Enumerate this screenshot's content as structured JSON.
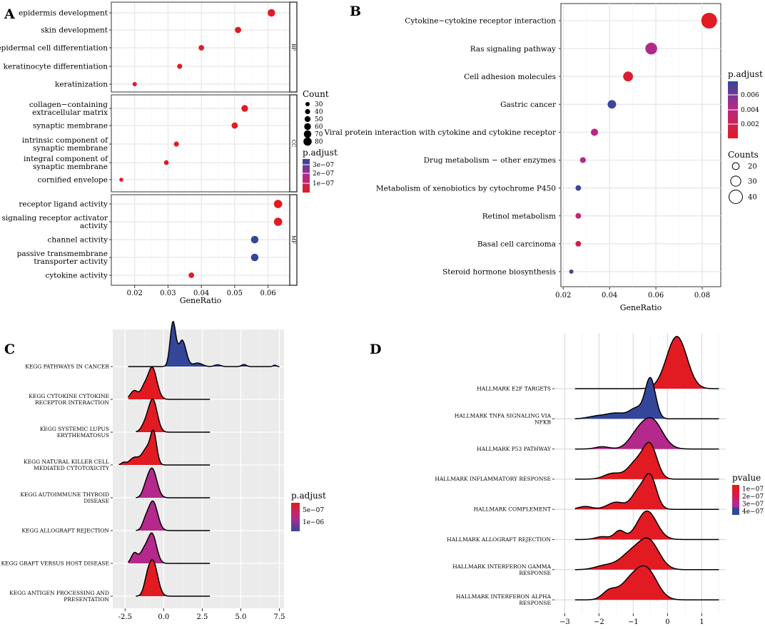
{
  "panel_letters": [
    "A",
    "B",
    "C",
    "D"
  ],
  "colors": {
    "red": "#e21b23",
    "purple": "#b4298b",
    "blue": "#33469a",
    "grid": "#e6e6e6"
  },
  "chart_data": [
    {
      "panel": "A",
      "type": "scatter",
      "xlabel": "GeneRatio",
      "xlim": [
        0.013,
        0.0665
      ],
      "xticks": [
        0.02,
        0.03,
        0.04,
        0.05,
        0.06
      ],
      "xtick_labels": [
        "0.02",
        "0.03",
        "0.04",
        "0.05",
        "0.06"
      ],
      "facets": [
        {
          "label": "BP",
          "terms": [
            {
              "label": [
                "epidermis development"
              ],
              "x": 0.061,
              "count": 70,
              "padj": 0.5
            },
            {
              "label": [
                "skin development"
              ],
              "x": 0.051,
              "count": 55,
              "padj": 0.5
            },
            {
              "label": [
                "epidermal cell differentiation"
              ],
              "x": 0.04,
              "count": 45,
              "padj": 0.5
            },
            {
              "label": [
                "keratinocyte differentiation"
              ],
              "x": 0.0335,
              "count": 40,
              "padj": 0.5
            },
            {
              "label": [
                "keratinization"
              ],
              "x": 0.02,
              "count": 30,
              "padj": 0.5
            }
          ]
        },
        {
          "label": "CC",
          "terms": [
            {
              "label": [
                "collagen−containing",
                "extracellular matrix"
              ],
              "x": 0.053,
              "count": 60,
              "padj": 0.5
            },
            {
              "label": [
                "synaptic membrane"
              ],
              "x": 0.05,
              "count": 55,
              "padj": 0.5
            },
            {
              "label": [
                "intrinsic component of",
                "synaptic membrane"
              ],
              "x": 0.0325,
              "count": 40,
              "padj": 0.5
            },
            {
              "label": [
                "integral component of",
                "synaptic membrane"
              ],
              "x": 0.0295,
              "count": 35,
              "padj": 0.5
            },
            {
              "label": [
                "cornified envelope"
              ],
              "x": 0.016,
              "count": 25,
              "padj": 0.5
            }
          ]
        },
        {
          "label": "MF",
          "terms": [
            {
              "label": [
                "receptor ligand activity"
              ],
              "x": 0.063,
              "count": 80,
              "padj": 0.5
            },
            {
              "label": [
                "signaling receptor activator",
                "activity"
              ],
              "x": 0.063,
              "count": 80,
              "padj": 0.5
            },
            {
              "label": [
                "channel activity"
              ],
              "x": 0.056,
              "count": 70,
              "padj": 3.2
            },
            {
              "label": [
                "passive transmembrane",
                "transporter activity"
              ],
              "x": 0.056,
              "count": 70,
              "padj": 3.2
            },
            {
              "label": [
                "cytokine activity"
              ],
              "x": 0.037,
              "count": 45,
              "padj": 0.5
            }
          ]
        }
      ],
      "size_legend": {
        "title": "Count",
        "values": [
          30,
          40,
          50,
          60,
          70,
          80
        ]
      },
      "color_legend": {
        "title": "p.adjust",
        "labels": [
          "3e−07",
          "2e−07",
          "1e−07"
        ]
      }
    },
    {
      "panel": "B",
      "type": "scatter",
      "xlabel": "GeneRatio",
      "xlim": [
        0.019,
        0.088
      ],
      "xticks": [
        0.02,
        0.04,
        0.06,
        0.08
      ],
      "xtick_labels": [
        "0.02",
        "0.04",
        "0.06",
        "0.08"
      ],
      "terms": [
        {
          "label": "Cytokine−cytokine receptor interaction",
          "x": 0.083,
          "counts": 47,
          "padj": 0.0001
        },
        {
          "label": "Ras signaling pathway",
          "x": 0.058,
          "counts": 35,
          "padj": 0.004
        },
        {
          "label": "Cell adhesion molecules",
          "x": 0.048,
          "counts": 29,
          "padj": 0.0006
        },
        {
          "label": "Gastric cancer",
          "x": 0.041,
          "counts": 25,
          "padj": 0.0075
        },
        {
          "label": "Viral protein interaction with cytokine and cytokine receptor",
          "x": 0.0335,
          "counts": 21,
          "padj": 0.0035
        },
        {
          "label": "Drug metabolism − other enzymes",
          "x": 0.0285,
          "counts": 17,
          "padj": 0.004
        },
        {
          "label": "Metabolism of xenobiotics by cytochrome P450",
          "x": 0.0265,
          "counts": 16,
          "padj": 0.0075
        },
        {
          "label": "Retinol metabolism",
          "x": 0.0265,
          "counts": 16,
          "padj": 0.003
        },
        {
          "label": "Basal cell carcinoma",
          "x": 0.0265,
          "counts": 16,
          "padj": 0.0012
        },
        {
          "label": "Steroid hormone biosynthesis",
          "x": 0.0235,
          "counts": 12,
          "padj": 0.0075
        }
      ],
      "color_legend": {
        "title": "p.adjust",
        "labels": [
          "0.006",
          "0.004",
          "0.002"
        ]
      },
      "size_legend": {
        "title": "Counts",
        "values": [
          20,
          30,
          40
        ]
      }
    },
    {
      "panel": "C",
      "type": "area",
      "subtype": "ridgeline",
      "xlim": [
        -3.3,
        7.8
      ],
      "xticks": [
        -2.5,
        0.0,
        2.5,
        5.0,
        7.5
      ],
      "xtick_labels": [
        "-2.5",
        "0.0",
        "2.5",
        "5.0",
        "7.5"
      ],
      "rows": [
        {
          "label": [
            "KEGG PATHWAYS IN CANCER"
          ],
          "range": [
            -2.3,
            7.5
          ],
          "peaks": [
            [
              0.6,
              1.5,
              0.18
            ],
            [
              1.2,
              0.9,
              0.25
            ],
            [
              2.2,
              0.12,
              0.3
            ],
            [
              3.5,
              0.06,
              0.2
            ],
            [
              5.2,
              0.07,
              0.15
            ],
            [
              7.2,
              0.05,
              0.1
            ]
          ],
          "color": "blue"
        },
        {
          "label": [
            "KEGG CYTOKINE CYTOKINE",
            "RECEPTOR INTERACTION"
          ],
          "range": [
            -2.3,
            3.0
          ],
          "peaks": [
            [
              -0.75,
              1.1,
              0.3
            ],
            [
              -1.9,
              0.3,
              0.25
            ],
            [
              -1.3,
              0.3,
              0.2
            ]
          ],
          "color": "red"
        },
        {
          "label": [
            "KEGG SYSTEMIC LUPUS",
            "ERYTHEMATOSUS"
          ],
          "range": [
            -1.8,
            3.0
          ],
          "peaks": [
            [
              -0.7,
              1.1,
              0.28
            ],
            [
              -1.2,
              0.25,
              0.25
            ]
          ],
          "color": "red"
        },
        {
          "label": [
            "KEGG NATURAL KILLER CELL",
            "MEDIATED CYTOTOXICITY"
          ],
          "range": [
            -2.9,
            3.0
          ],
          "peaks": [
            [
              -0.65,
              1.0,
              0.2
            ],
            [
              -1.1,
              0.55,
              0.3
            ],
            [
              -1.9,
              0.25,
              0.3
            ],
            [
              -2.6,
              0.08,
              0.15
            ]
          ],
          "color": "red"
        },
        {
          "label": [
            "KEGG AUTOIMMUNE THYROID",
            "DISEASE"
          ],
          "range": [
            -1.8,
            3.0
          ],
          "peaks": [
            [
              -0.75,
              1.0,
              0.3
            ],
            [
              -1.2,
              0.2,
              0.2
            ]
          ],
          "color": "purple"
        },
        {
          "label": [
            "KEGG ALLOGRAFT REJECTION"
          ],
          "range": [
            -1.8,
            3.0
          ],
          "peaks": [
            [
              -0.7,
              1.0,
              0.3
            ],
            [
              -1.2,
              0.25,
              0.2
            ]
          ],
          "color": "purple"
        },
        {
          "label": [
            "KEGG GRAFT VERSUS HOST DISEASE"
          ],
          "range": [
            -2.3,
            3.0
          ],
          "peaks": [
            [
              -0.75,
              1.0,
              0.28
            ],
            [
              -1.9,
              0.35,
              0.2
            ],
            [
              -1.3,
              0.4,
              0.25
            ]
          ],
          "color": "purple"
        },
        {
          "label": [
            "KEGG ANTIGEN PROCESSING AND",
            "PRESENTATION"
          ],
          "range": [
            -1.8,
            3.0
          ],
          "peaks": [
            [
              -0.7,
              1.2,
              0.3
            ],
            [
              -1.1,
              0.3,
              0.2
            ]
          ],
          "color": "red"
        }
      ],
      "color_legend": {
        "title": "p.adjust",
        "labels": [
          "5e−07",
          "1e−06"
        ]
      }
    },
    {
      "panel": "D",
      "type": "area",
      "subtype": "ridgeline",
      "xlim": [
        -3.3,
        1.7
      ],
      "xticks": [
        -3,
        -2,
        -1,
        0,
        1
      ],
      "xtick_labels": [
        "−3",
        "−2",
        "−1",
        "0",
        "1"
      ],
      "rows": [
        {
          "label": [
            "HALLMARK E2F TARGETS"
          ],
          "range": [
            -2.7,
            1.5
          ],
          "peaks": [
            [
              0.3,
              1.7,
              0.28
            ],
            [
              0.0,
              0.25,
              0.25
            ]
          ],
          "color": "red"
        },
        {
          "label": [
            "HALLMARK TNFA SIGNALING VIA",
            "NFKB"
          ],
          "range": [
            -2.7,
            1.5
          ],
          "peaks": [
            [
              -0.5,
              1.4,
              0.15
            ],
            [
              -0.9,
              0.35,
              0.2
            ],
            [
              -1.5,
              0.2,
              0.3
            ],
            [
              -2.1,
              0.08,
              0.25
            ]
          ],
          "color": "blue"
        },
        {
          "label": [
            "HALLMARK P53 PATHWAY"
          ],
          "range": [
            -2.7,
            1.5
          ],
          "peaks": [
            [
              -0.45,
              1.0,
              0.3
            ],
            [
              -0.9,
              0.4,
              0.25
            ],
            [
              -1.9,
              0.08,
              0.2
            ]
          ],
          "color": "purple"
        },
        {
          "label": [
            "HALLMARK INFLAMMATORY RESPONSE"
          ],
          "range": [
            -2.7,
            1.5
          ],
          "peaks": [
            [
              -0.5,
              1.1,
              0.2
            ],
            [
              -0.9,
              0.6,
              0.25
            ],
            [
              -1.6,
              0.2,
              0.25
            ]
          ],
          "color": "red"
        },
        {
          "label": [
            "HALLMARK COMPLEMENT"
          ],
          "range": [
            -2.7,
            1.5
          ],
          "peaks": [
            [
              -0.5,
              1.1,
              0.18
            ],
            [
              -0.85,
              0.6,
              0.2
            ],
            [
              -1.5,
              0.25,
              0.25
            ],
            [
              -2.4,
              0.1,
              0.2
            ]
          ],
          "color": "red"
        },
        {
          "label": [
            "HALLMARK ALLOGRAFT REJECTION"
          ],
          "range": [
            -2.7,
            1.5
          ],
          "peaks": [
            [
              -0.6,
              1.0,
              0.28
            ],
            [
              -1.4,
              0.3,
              0.15
            ],
            [
              -1.9,
              0.1,
              0.2
            ]
          ],
          "color": "red"
        },
        {
          "label": [
            "HALLMARK INTERFERON GAMMA",
            "RESPONSE"
          ],
          "range": [
            -2.7,
            1.5
          ],
          "peaks": [
            [
              -0.55,
              1.0,
              0.3
            ],
            [
              -1.1,
              0.5,
              0.3
            ],
            [
              -1.8,
              0.15,
              0.3
            ]
          ],
          "color": "red"
        },
        {
          "label": [
            "HALLMARK INTERFERON ALPHA",
            "RESPONSE"
          ],
          "range": [
            -2.7,
            1.5
          ],
          "peaks": [
            [
              -0.6,
              1.0,
              0.3
            ],
            [
              -1.1,
              0.6,
              0.3
            ],
            [
              -1.7,
              0.3,
              0.2
            ]
          ],
          "color": "red"
        }
      ],
      "color_legend": {
        "title": "pvalue",
        "labels": [
          "1e−07",
          "2e−07",
          "3e−07",
          "4e−07"
        ]
      }
    }
  ]
}
